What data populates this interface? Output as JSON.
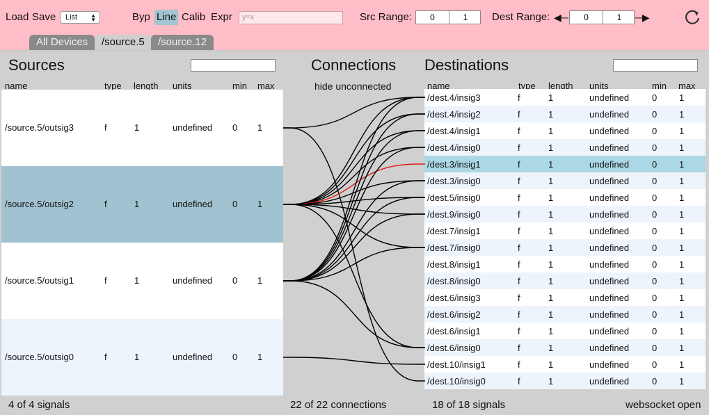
{
  "toolbar": {
    "load_label": "Load",
    "save_label": "Save",
    "view_select": "List",
    "modes": [
      "Byp",
      "Line",
      "Calib",
      "Expr"
    ],
    "active_mode": "Line",
    "expr_placeholder": "y=x",
    "src_range_label": "Src Range:",
    "src_range_min": "0",
    "src_range_max": "1",
    "dest_range_label": "Dest Range:",
    "dest_range_min": "0",
    "dest_range_max": "1"
  },
  "tabs": [
    {
      "label": "All Devices",
      "active": false
    },
    {
      "label": "/source.5",
      "active": true
    },
    {
      "label": "/source.12",
      "active": false
    }
  ],
  "sources": {
    "title": "Sources",
    "columns": [
      "name",
      "type",
      "length",
      "units",
      "min",
      "max"
    ],
    "rows": [
      {
        "name": "/source.5/outsig3",
        "type": "f",
        "length": "1",
        "units": "undefined",
        "min": "0",
        "max": "1"
      },
      {
        "name": "/source.5/outsig2",
        "type": "f",
        "length": "1",
        "units": "undefined",
        "min": "0",
        "max": "1"
      },
      {
        "name": "/source.5/outsig1",
        "type": "f",
        "length": "1",
        "units": "undefined",
        "min": "0",
        "max": "1"
      },
      {
        "name": "/source.5/outsig0",
        "type": "f",
        "length": "1",
        "units": "undefined",
        "min": "0",
        "max": "1"
      }
    ]
  },
  "connections": {
    "title": "Connections",
    "hide_label": "hide unconnected",
    "links": [
      {
        "src": 0,
        "dst": 0
      },
      {
        "src": 0,
        "dst": 17
      },
      {
        "src": 1,
        "dst": 0
      },
      {
        "src": 1,
        "dst": 1
      },
      {
        "src": 1,
        "dst": 2
      },
      {
        "src": 1,
        "dst": 3
      },
      {
        "src": 1,
        "dst": 4,
        "selected": true
      },
      {
        "src": 1,
        "dst": 5
      },
      {
        "src": 1,
        "dst": 6
      },
      {
        "src": 1,
        "dst": 7
      },
      {
        "src": 1,
        "dst": 9
      },
      {
        "src": 1,
        "dst": 15
      },
      {
        "src": 2,
        "dst": 0
      },
      {
        "src": 2,
        "dst": 1
      },
      {
        "src": 2,
        "dst": 2
      },
      {
        "src": 2,
        "dst": 3
      },
      {
        "src": 2,
        "dst": 5
      },
      {
        "src": 2,
        "dst": 6
      },
      {
        "src": 2,
        "dst": 7
      },
      {
        "src": 2,
        "dst": 9
      },
      {
        "src": 2,
        "dst": 15
      },
      {
        "src": 3,
        "dst": 16
      }
    ]
  },
  "destinations": {
    "title": "Destinations",
    "columns": [
      "name",
      "type",
      "length",
      "units",
      "min",
      "max"
    ],
    "rows": [
      {
        "name": "/dest.4/insig3",
        "type": "f",
        "length": "1",
        "units": "undefined",
        "min": "0",
        "max": "1"
      },
      {
        "name": "/dest.4/insig2",
        "type": "f",
        "length": "1",
        "units": "undefined",
        "min": "0",
        "max": "1"
      },
      {
        "name": "/dest.4/insig1",
        "type": "f",
        "length": "1",
        "units": "undefined",
        "min": "0",
        "max": "1"
      },
      {
        "name": "/dest.4/insig0",
        "type": "f",
        "length": "1",
        "units": "undefined",
        "min": "0",
        "max": "1"
      },
      {
        "name": "/dest.3/insig1",
        "type": "f",
        "length": "1",
        "units": "undefined",
        "min": "0",
        "max": "1"
      },
      {
        "name": "/dest.3/insig0",
        "type": "f",
        "length": "1",
        "units": "undefined",
        "min": "0",
        "max": "1"
      },
      {
        "name": "/dest.5/insig0",
        "type": "f",
        "length": "1",
        "units": "undefined",
        "min": "0",
        "max": "1"
      },
      {
        "name": "/dest.9/insig0",
        "type": "f",
        "length": "1",
        "units": "undefined",
        "min": "0",
        "max": "1"
      },
      {
        "name": "/dest.7/insig1",
        "type": "f",
        "length": "1",
        "units": "undefined",
        "min": "0",
        "max": "1"
      },
      {
        "name": "/dest.7/insig0",
        "type": "f",
        "length": "1",
        "units": "undefined",
        "min": "0",
        "max": "1"
      },
      {
        "name": "/dest.8/insig1",
        "type": "f",
        "length": "1",
        "units": "undefined",
        "min": "0",
        "max": "1"
      },
      {
        "name": "/dest.8/insig0",
        "type": "f",
        "length": "1",
        "units": "undefined",
        "min": "0",
        "max": "1"
      },
      {
        "name": "/dest.6/insig3",
        "type": "f",
        "length": "1",
        "units": "undefined",
        "min": "0",
        "max": "1"
      },
      {
        "name": "/dest.6/insig2",
        "type": "f",
        "length": "1",
        "units": "undefined",
        "min": "0",
        "max": "1"
      },
      {
        "name": "/dest.6/insig1",
        "type": "f",
        "length": "1",
        "units": "undefined",
        "min": "0",
        "max": "1"
      },
      {
        "name": "/dest.6/insig0",
        "type": "f",
        "length": "1",
        "units": "undefined",
        "min": "0",
        "max": "1"
      },
      {
        "name": "/dest.10/insig1",
        "type": "f",
        "length": "1",
        "units": "undefined",
        "min": "0",
        "max": "1"
      },
      {
        "name": "/dest.10/insig0",
        "type": "f",
        "length": "1",
        "units": "undefined",
        "min": "0",
        "max": "1"
      }
    ]
  },
  "selection": {
    "source_row": 1,
    "dest_row": 4
  },
  "status": {
    "sources_count": "4 of 4 signals",
    "connections_count": "22 of 22 connections",
    "dests_count": "18 of 18 signals",
    "socket": "websocket open"
  },
  "colors": {
    "background": "#ffbdc8",
    "panel": "#d0d0d0",
    "selected_source": "#a1c3d1",
    "selected_dest": "#acd8e5",
    "row_alt": "#eef4fc",
    "row": "#ffffff",
    "link": "#000000",
    "link_selected": "#e0201c"
  },
  "icons": {
    "refresh": "refresh-icon",
    "dest_range_left": "arrow-left-icon",
    "dest_range_right": "arrow-right-icon"
  }
}
